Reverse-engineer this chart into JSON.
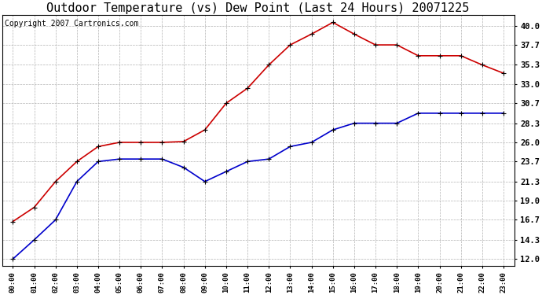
{
  "title": "Outdoor Temperature (vs) Dew Point (Last 24 Hours) 20071225",
  "copyright_text": "Copyright 2007 Cartronics.com",
  "hours": [
    "00:00",
    "01:00",
    "02:00",
    "03:00",
    "04:00",
    "05:00",
    "06:00",
    "07:00",
    "08:00",
    "09:00",
    "10:00",
    "11:00",
    "12:00",
    "13:00",
    "14:00",
    "15:00",
    "16:00",
    "17:00",
    "18:00",
    "19:00",
    "20:00",
    "21:00",
    "22:00",
    "23:00"
  ],
  "temp_red": [
    16.5,
    18.2,
    21.3,
    23.7,
    25.5,
    26.0,
    26.0,
    26.0,
    26.1,
    27.5,
    30.7,
    32.5,
    35.3,
    37.7,
    39.0,
    40.4,
    39.0,
    37.7,
    37.7,
    36.4,
    36.4,
    36.4,
    35.3,
    34.3
  ],
  "temp_blue": [
    12.0,
    14.3,
    16.7,
    21.3,
    23.7,
    24.0,
    24.0,
    24.0,
    23.0,
    21.3,
    22.5,
    23.7,
    24.0,
    25.5,
    26.0,
    27.5,
    28.3,
    28.3,
    28.3,
    29.5,
    29.5,
    29.5,
    29.5,
    29.5
  ],
  "yticks": [
    12.0,
    14.3,
    16.7,
    19.0,
    21.3,
    23.7,
    26.0,
    28.3,
    30.7,
    33.0,
    35.3,
    37.7,
    40.0
  ],
  "ymin": 11.2,
  "ymax": 41.3,
  "red_color": "#cc0000",
  "blue_color": "#0000cc",
  "background_color": "#ffffff",
  "plot_bg_color": "#ffffff",
  "grid_color": "#aaaaaa",
  "title_fontsize": 11,
  "copyright_fontsize": 7,
  "tick_fontsize": 7.5,
  "xtick_fontsize": 6.5
}
